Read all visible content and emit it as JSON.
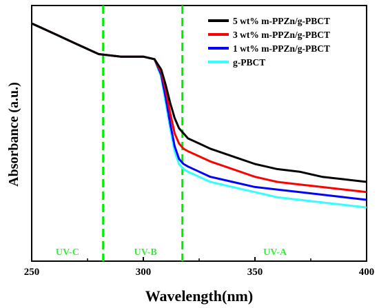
{
  "chart_data": {
    "type": "line",
    "xlabel": "Wavelength(nm)",
    "ylabel": "Absorbance (a.u.)",
    "xlim": [
      250,
      400
    ],
    "ylim": [
      0,
      100
    ],
    "y_ticks_labeled": false,
    "x_ticks": [
      250,
      300,
      350,
      400
    ],
    "legend_position": "top-right",
    "series": [
      {
        "name": "5 wt% m-PPZn/g-PBCT",
        "color": "#000000",
        "x": [
          250,
          260,
          270,
          280,
          290,
          300,
          305,
          308,
          310,
          312,
          314,
          316,
          318,
          320,
          325,
          330,
          340,
          350,
          360,
          370,
          380,
          390,
          400
        ],
        "y": [
          93,
          89,
          85,
          81,
          80,
          80,
          79,
          75,
          69,
          62,
          56,
          52,
          50,
          48,
          46,
          44,
          41,
          38,
          36,
          35,
          33,
          32,
          31
        ]
      },
      {
        "name": "3 wt% m-PPZn/g-PBCT",
        "color": "#ff0000",
        "x": [
          250,
          260,
          270,
          280,
          290,
          300,
          305,
          308,
          310,
          312,
          314,
          316,
          318,
          320,
          325,
          330,
          340,
          350,
          360,
          370,
          380,
          390,
          400
        ],
        "y": [
          93,
          89,
          85,
          81,
          80,
          80,
          79,
          74,
          67,
          58,
          50,
          46,
          44,
          43,
          41,
          39,
          36,
          33,
          31,
          30,
          29,
          28,
          27
        ]
      },
      {
        "name": "1 wt% m-PPZn/g-PBCT",
        "color": "#0000ff",
        "x": [
          250,
          260,
          270,
          280,
          290,
          300,
          305,
          308,
          310,
          312,
          314,
          316,
          318,
          320,
          325,
          330,
          340,
          350,
          360,
          370,
          380,
          390,
          400
        ],
        "y": [
          93,
          89,
          85,
          81,
          80,
          80,
          79,
          73,
          64,
          54,
          45,
          40,
          38,
          37,
          35,
          33,
          31,
          29,
          28,
          27,
          26,
          25,
          24
        ]
      },
      {
        "name": "g-PBCT",
        "color": "#33ffff",
        "x": [
          250,
          260,
          270,
          280,
          290,
          300,
          305,
          308,
          310,
          312,
          314,
          316,
          318,
          320,
          325,
          330,
          340,
          350,
          360,
          370,
          380,
          390,
          400
        ],
        "y": [
          93,
          89,
          85,
          81,
          80,
          80,
          79,
          72,
          62,
          52,
          43,
          38,
          36,
          35,
          33,
          31,
          29,
          27,
          25,
          24,
          23,
          22,
          21
        ]
      }
    ],
    "vlines": [
      {
        "x": 282,
        "color": "#00ee00",
        "style": "dashed"
      },
      {
        "x": 317.5,
        "color": "#00ee00",
        "style": "dashed"
      }
    ],
    "regions": [
      {
        "label": "UV-C",
        "x": 266,
        "color": "#33ee33"
      },
      {
        "label": "UV-B",
        "x": 301,
        "color": "#33ee33"
      },
      {
        "label": "UV-A",
        "x": 359,
        "color": "#33ee33"
      }
    ]
  }
}
